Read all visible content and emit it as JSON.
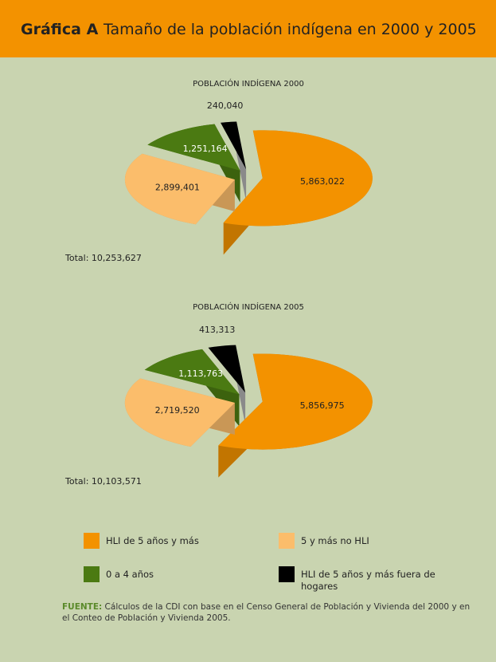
{
  "header": {
    "label": "Gráfica A",
    "title": "Tamaño de la población indígena en 2000 y 2005"
  },
  "legend": {
    "items": [
      {
        "name": "HLI de 5 años y más",
        "color": "#f39200"
      },
      {
        "name": "5 y más no HLI",
        "color": "#fbbd6b"
      },
      {
        "name": "0 a 4 años",
        "color": "#4b7a12"
      },
      {
        "name": "HLI de 5 años y más fuera de hogares",
        "color": "#000000"
      }
    ]
  },
  "chart_data": [
    {
      "type": "pie",
      "title": "POBLACIÓN INDÍGENA 2000",
      "values": [
        5863022,
        2899401,
        1251164,
        240040
      ],
      "value_labels": [
        "5,863,022",
        "2,899,401",
        "1,251,164",
        "240,040"
      ],
      "annotation": "Total: 10,253,627"
    },
    {
      "type": "pie",
      "title": "POBLACIÓN INDÍGENA 2005",
      "values": [
        5856975,
        2719520,
        1113763,
        413313
      ],
      "value_labels": [
        "5,856,975",
        "2,719,520",
        "1,113,763",
        "413,313"
      ],
      "annotation": "Total: 10,103,571"
    }
  ],
  "source": {
    "label": "FUENTE:",
    "text": "Cálculos de la CDI con base en el Censo General de Población y Vivienda del 2000 y en el Conteo de Población y Vivienda 2005."
  }
}
